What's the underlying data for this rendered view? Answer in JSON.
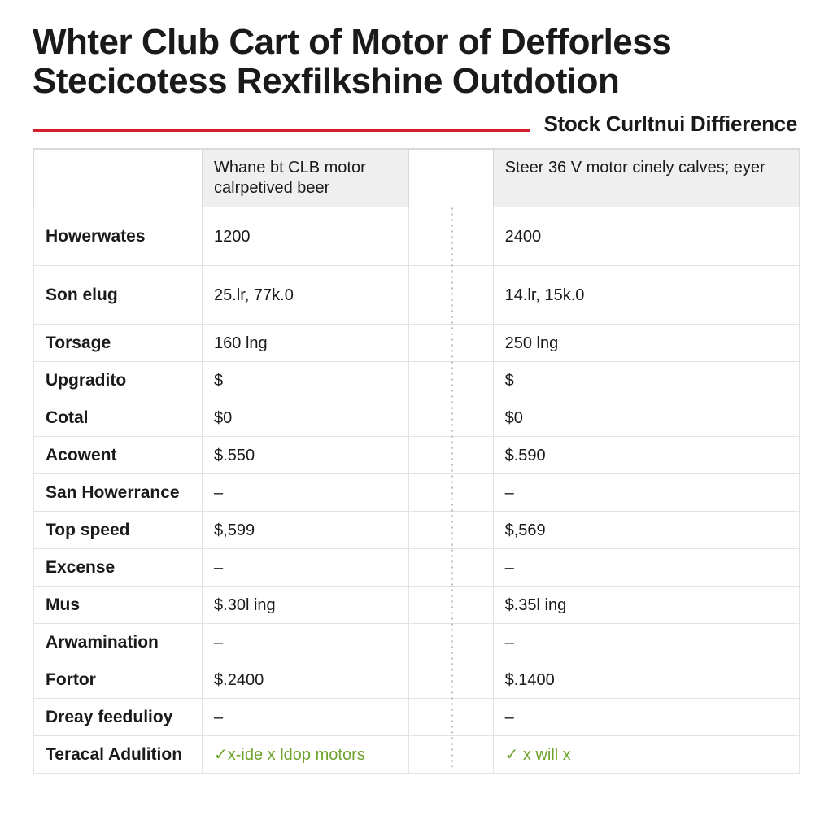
{
  "title_line1": "Whter Club Cart of Motor of Defforless",
  "title_line2": "Stecicotess Rexfilkshine Outdotion",
  "subhead": "Stock Curltnui Diffierence",
  "colors": {
    "rule": "#d3202a",
    "header_bg": "#efefef",
    "border": "#d9d9d9",
    "check": "#6fa32c",
    "text": "#1a1a1a",
    "background": "#ffffff"
  },
  "table": {
    "columns": [
      {
        "label": "",
        "width_pct": 22
      },
      {
        "label": "Whane bt CLB motor\ncalrpetived beer",
        "width_pct": 27
      },
      {
        "label": "",
        "width_pct": 11
      },
      {
        "label": "Steer 36 V motor\ncinely calves; eyer",
        "width_pct": 40
      }
    ],
    "rows": [
      {
        "height": "tall",
        "label": "Howerwates",
        "col1": "1200",
        "col2": "",
        "col3": "2400"
      },
      {
        "height": "tall",
        "label": "Son elug",
        "col1": "25.lr, 77k.0",
        "col2": "",
        "col3": "14.lr, 15k.0"
      },
      {
        "height": "short",
        "label": "Torsage",
        "col1": "160 lng",
        "col2": "",
        "col3": "250 lng"
      },
      {
        "height": "short",
        "label": "Upgradito",
        "col1": "$",
        "col2": "",
        "col3": "$"
      },
      {
        "height": "short",
        "label": "Cotal",
        "col1": "$0",
        "col2": "",
        "col3": "$0"
      },
      {
        "height": "short",
        "label": "Acowent",
        "col1": "$.550",
        "col2": "",
        "col3": "$.590"
      },
      {
        "height": "short",
        "label": "San Howerrance",
        "col1": "–",
        "col2": "",
        "col3": "–"
      },
      {
        "height": "short",
        "label": "Top speed",
        "col1": "$,599",
        "col2": "",
        "col3": "$,569"
      },
      {
        "height": "short",
        "label": "Excense",
        "col1": "–",
        "col2": "",
        "col3": "–"
      },
      {
        "height": "short",
        "label": "Mus",
        "col1": "$.30l ing",
        "col2": "",
        "col3": "$.35l ing"
      },
      {
        "height": "short",
        "label": "Arwamination",
        "col1": "–",
        "col2": "",
        "col3": "–"
      },
      {
        "height": "short",
        "label": "Fortor",
        "col1": "$.2400",
        "col2": "",
        "col3": "$.1400"
      },
      {
        "height": "short",
        "label": "Dreay feedulioy",
        "col1": "–",
        "col2": "",
        "col3": "–"
      },
      {
        "height": "short",
        "label": "Teracal Adulition",
        "col1": "✓x-ide x ldop motors",
        "col1_class": "check",
        "col2": "",
        "col3": "✓ x will x",
        "col3_class": "check"
      }
    ]
  }
}
